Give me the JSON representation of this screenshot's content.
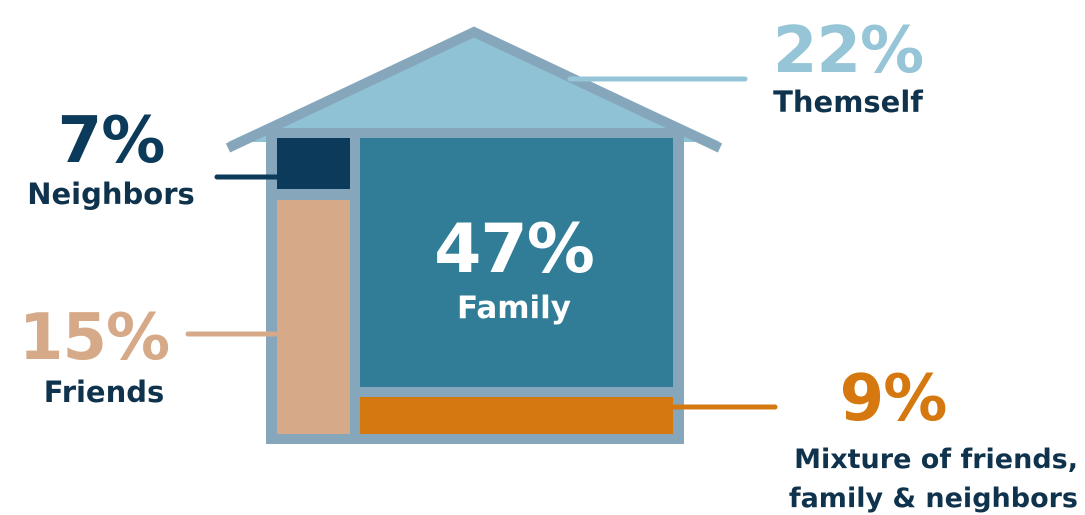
{
  "colors": {
    "roof": "#8fc2d4",
    "frame": "#86a7bb",
    "themself": "#95c5d6",
    "neighbors": "#0c3a5a",
    "friends": "#d6aa88",
    "family": "#317d97",
    "mixture": "#d4780f",
    "dark_text": "#0f334c",
    "white_text": "#ffffff"
  },
  "chart_data": {
    "type": "diagram",
    "segments": [
      {
        "key": "themself",
        "value": 22,
        "percent": "22%",
        "label": "Themself"
      },
      {
        "key": "neighbors",
        "value": 7,
        "percent": "7%",
        "label": "Neighbors"
      },
      {
        "key": "family",
        "value": 47,
        "percent": "47%",
        "label": "Family"
      },
      {
        "key": "friends",
        "value": 15,
        "percent": "15%",
        "label": "Friends"
      },
      {
        "key": "mixture",
        "value": 9,
        "percent": "9%",
        "label_lines": [
          "Mixture of friends,",
          "family & neighbors"
        ]
      }
    ]
  }
}
